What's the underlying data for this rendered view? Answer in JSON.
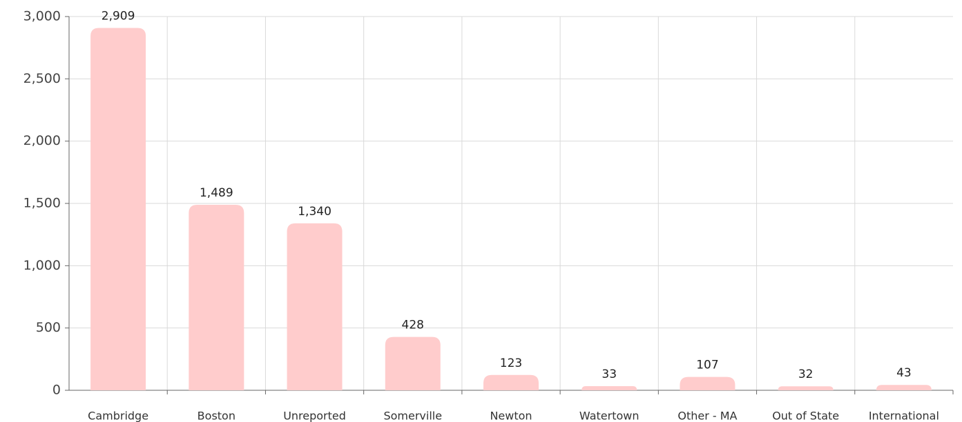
{
  "chart_data": {
    "type": "bar",
    "categories": [
      "Cambridge",
      "Boston",
      "Unreported",
      "Somerville",
      "Newton",
      "Watertown",
      "Other - MA",
      "Out of State",
      "International"
    ],
    "values": [
      2909,
      1489,
      1340,
      428,
      123,
      33,
      107,
      32,
      43
    ],
    "value_labels": [
      "2,909",
      "1,489",
      "1,340",
      "428",
      "123",
      "33",
      "107",
      "32",
      "43"
    ],
    "color": "#ffcccc",
    "ylim": [
      0,
      3000
    ],
    "yticks": [
      0,
      500,
      {
        "value": 1000,
        "label": "1,000"
      },
      {
        "value": 1500,
        "label": "1,500"
      },
      {
        "value": 2000,
        "label": "2,000"
      },
      {
        "value": 2500,
        "label": "2,500"
      },
      {
        "value": 3000,
        "label": "3,000"
      }
    ],
    "grid": true
  }
}
